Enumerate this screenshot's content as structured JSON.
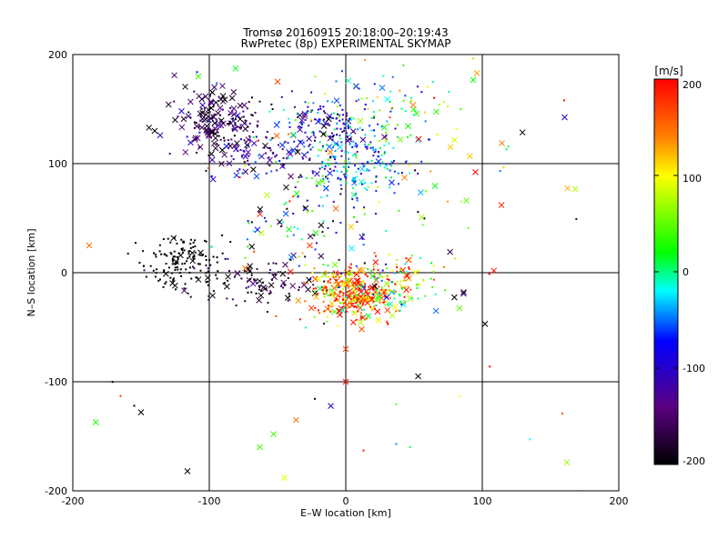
{
  "chart_data": {
    "type": "scatter",
    "title": "Tromsø 20160915 20:18:00–20:19:43",
    "subtitle": "RwPretec (8p) EXPERIMENTAL SKYMAP",
    "xlabel": "E–W location [km]",
    "ylabel": "N–S location [km]",
    "xlim": [
      -200,
      200
    ],
    "ylim": [
      -200,
      200
    ],
    "xticks": [
      "-200",
      "-100",
      "0",
      "100",
      "200"
    ],
    "yticks": [
      "-200",
      "-100",
      "0",
      "100",
      "200"
    ],
    "grid": true,
    "colorbar": {
      "label": "[m/s]",
      "range": [
        -200,
        200
      ],
      "ticks": [
        "200",
        "100",
        "0",
        "-100",
        "-200"
      ],
      "colormap": "black-purple-blue-cyan-green-yellow-red"
    },
    "markers": {
      "small_dots": "small points",
      "large": "x crosses"
    },
    "clusters": [
      {
        "cx": -95,
        "cy": 140,
        "sx": 15,
        "sy": 15,
        "n": 160,
        "vel": -165,
        "vspread": 35,
        "crossFrac": 0.55
      },
      {
        "cx": -70,
        "cy": 110,
        "sx": 20,
        "sy": 12,
        "n": 90,
        "vel": -120,
        "vspread": 50,
        "crossFrac": 0.35
      },
      {
        "cx": -20,
        "cy": 130,
        "sx": 20,
        "sy": 18,
        "n": 150,
        "vel": -105,
        "vspread": 50,
        "crossFrac": 0.15
      },
      {
        "cx": 10,
        "cy": 100,
        "sx": 20,
        "sy": 15,
        "n": 190,
        "vel": -45,
        "vspread": 45,
        "crossFrac": 0.05
      },
      {
        "cx": 25,
        "cy": 155,
        "sx": 25,
        "sy": 20,
        "n": 80,
        "vel": 10,
        "vspread": 70,
        "crossFrac": 0.15
      },
      {
        "cx": -120,
        "cy": 10,
        "sx": 15,
        "sy": 12,
        "n": 140,
        "vel": -200,
        "vspread": 5,
        "crossFrac": 0.05
      },
      {
        "cx": -65,
        "cy": -12,
        "sx": 25,
        "sy": 10,
        "n": 90,
        "vel": -180,
        "vspread": 25,
        "crossFrac": 0.25
      },
      {
        "cx": 5,
        "cy": -20,
        "sx": 15,
        "sy": 12,
        "n": 340,
        "vel": 150,
        "vspread": 70,
        "crossFrac": 0.25
      },
      {
        "cx": 40,
        "cy": -10,
        "sx": 18,
        "sy": 14,
        "n": 120,
        "vel": 60,
        "vspread": 90,
        "crossFrac": 0.15
      },
      {
        "cx": -30,
        "cy": 40,
        "sx": 30,
        "sy": 30,
        "n": 120,
        "vel": -50,
        "vspread": 120,
        "crossFrac": 0.25
      },
      {
        "cx": 70,
        "cy": 130,
        "sx": 35,
        "sy": 40,
        "n": 35,
        "vel": 60,
        "vspread": 60,
        "crossFrac": 0.35
      },
      {
        "cx": 0,
        "cy": 40,
        "sx": 120,
        "sy": 110,
        "n": 60,
        "vel": 0,
        "vspread": 130,
        "crossFrac": 0.45
      }
    ],
    "outliers": [
      {
        "x": -188,
        "y": 25,
        "v": 150,
        "m": "x"
      },
      {
        "x": -165,
        "y": -113,
        "v": 180,
        "m": "dot"
      },
      {
        "x": -155,
        "y": -122,
        "v": -200,
        "m": "dot"
      },
      {
        "x": -150,
        "y": -128,
        "v": -200,
        "m": "x"
      },
      {
        "x": -116,
        "y": -182,
        "v": -200,
        "m": "x"
      },
      {
        "x": -63,
        "y": -160,
        "v": 40,
        "m": "x"
      },
      {
        "x": -53,
        "y": -148,
        "v": 40,
        "m": "x"
      },
      {
        "x": -45,
        "y": -188,
        "v": 90,
        "m": "x"
      },
      {
        "x": 13,
        "y": -163,
        "v": 190,
        "m": "dot"
      },
      {
        "x": 53,
        "y": -95,
        "v": -200,
        "m": "x"
      },
      {
        "x": 102,
        "y": -47,
        "v": -200,
        "m": "x"
      },
      {
        "x": 162,
        "y": -174,
        "v": 70,
        "m": "x"
      },
      {
        "x": 114,
        "y": 62,
        "v": 180,
        "m": "x"
      },
      {
        "x": 160,
        "y": 158,
        "v": 190,
        "m": "dot"
      },
      {
        "x": 96,
        "y": 183,
        "v": 130,
        "m": "x"
      },
      {
        "x": -108,
        "y": 180,
        "v": 40,
        "m": "x"
      },
      {
        "x": -125,
        "y": 140,
        "v": -180,
        "m": "x"
      },
      {
        "x": -140,
        "y": 130,
        "v": -200,
        "m": "x"
      },
      {
        "x": 0,
        "y": -100,
        "v": 190,
        "m": "x"
      },
      {
        "x": 0,
        "y": -70,
        "v": 170,
        "m": "x"
      }
    ]
  }
}
